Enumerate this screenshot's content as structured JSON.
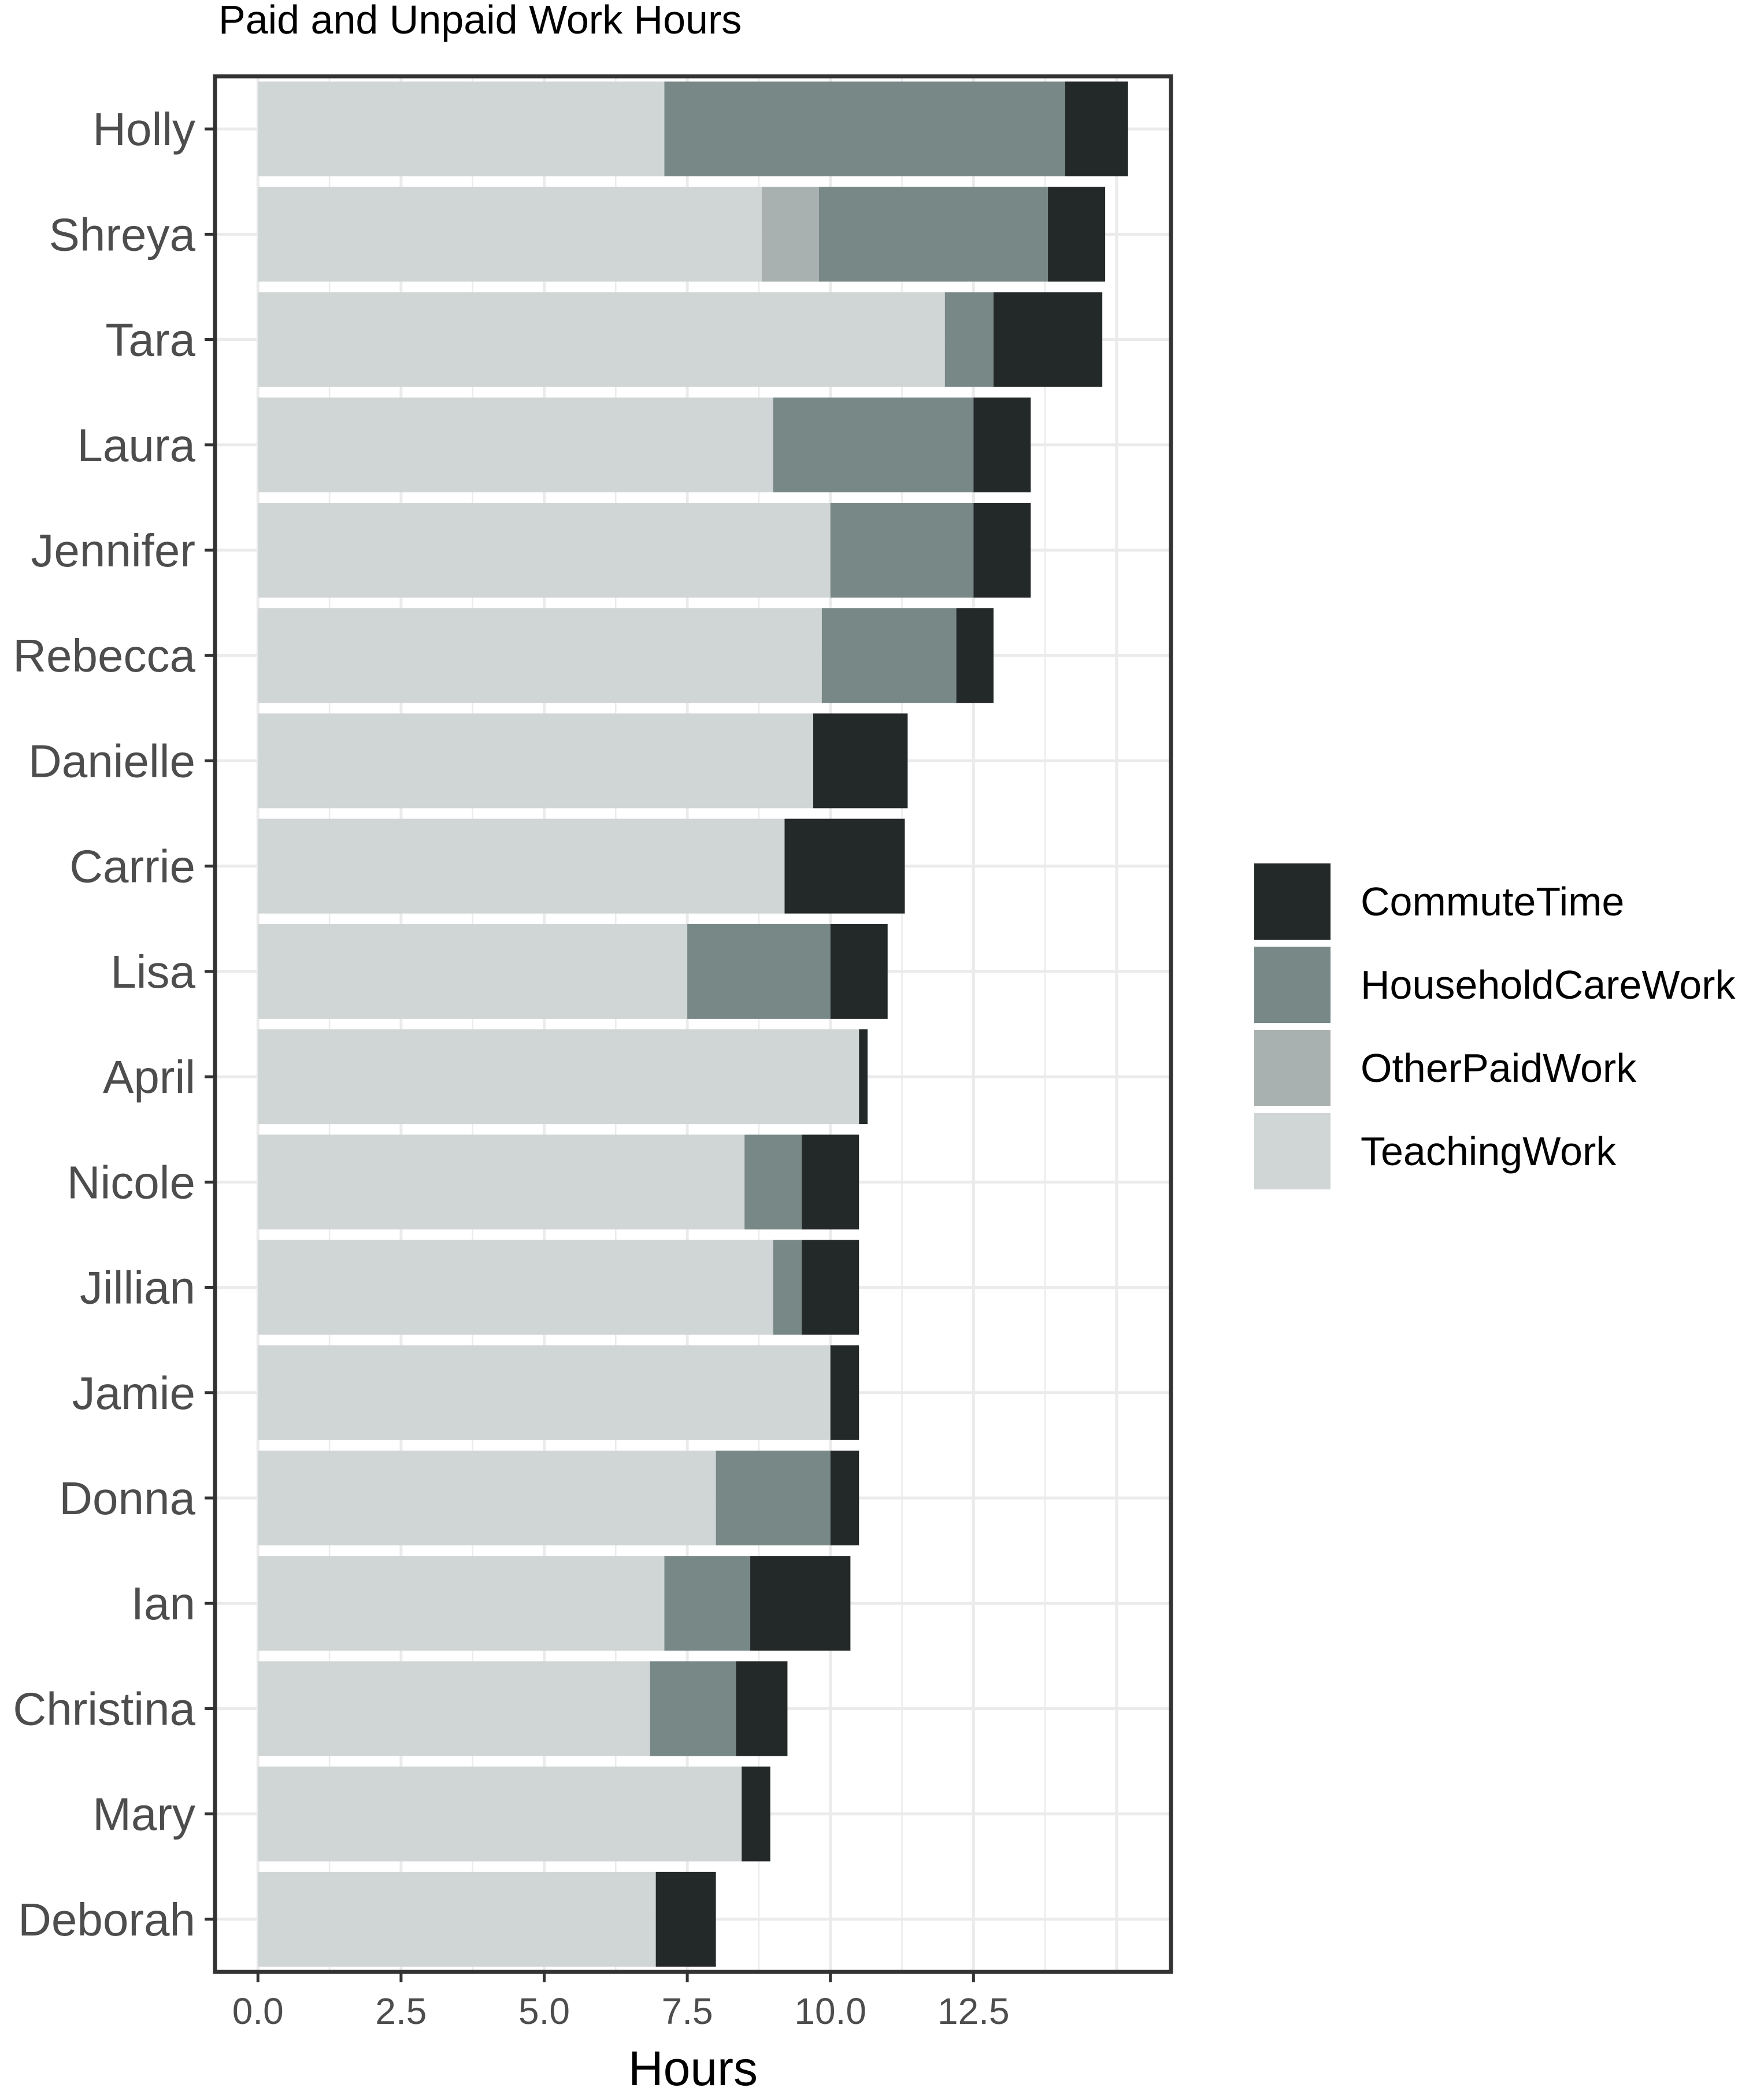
{
  "chart_data": {
    "type": "bar",
    "orientation": "horizontal",
    "stacked": true,
    "title": "Paid and Unpaid Work Hours",
    "xlabel": "Hours",
    "ylabel": "",
    "xlim": [
      -0.75,
      15.95
    ],
    "x_ticks": [
      0,
      2.5,
      5,
      7.5,
      10,
      12.5
    ],
    "x_tick_labels": [
      "0.0",
      "2.5",
      "5.0",
      "7.5",
      "10.0",
      "12.5"
    ],
    "grid": true,
    "legend_position": "right",
    "legend_order": [
      "CommuteTime",
      "HouseholdCareWork",
      "OtherPaidWork",
      "TeachingWork"
    ],
    "categories": [
      "Holly",
      "Shreya",
      "Tara",
      "Laura",
      "Jennifer",
      "Rebecca",
      "Danielle",
      "Carrie",
      "Lisa",
      "April",
      "Nicole",
      "Jillian",
      "Jamie",
      "Donna",
      "Ian",
      "Christina",
      "Mary",
      "Deborah"
    ],
    "series": [
      {
        "name": "TeachingWork",
        "color": "#d0d6d5",
        "values": [
          7.1,
          8.8,
          12.0,
          9.0,
          10.0,
          9.85,
          9.7,
          9.2,
          7.5,
          10.5,
          8.5,
          9.0,
          10.0,
          8.0,
          7.1,
          6.85,
          8.45,
          6.95
        ]
      },
      {
        "name": "OtherPaidWork",
        "color": "#a8b1b0",
        "values": [
          0,
          1.0,
          0,
          0,
          0,
          0,
          0,
          0,
          0,
          0,
          0,
          0,
          0,
          0,
          0,
          0,
          0,
          0
        ]
      },
      {
        "name": "HouseholdCareWork",
        "color": "#788887",
        "values": [
          7.0,
          4.0,
          0.85,
          3.5,
          2.5,
          2.35,
          0,
          0,
          2.5,
          0,
          1.0,
          0.5,
          0,
          2.0,
          1.5,
          1.5,
          0,
          0
        ]
      },
      {
        "name": "CommuteTime",
        "color": "#232828",
        "values": [
          1.1,
          1.0,
          1.9,
          1.0,
          1.0,
          0.65,
          1.65,
          2.1,
          1.0,
          0.15,
          1.0,
          1.0,
          0.5,
          0.5,
          1.75,
          0.9,
          0.5,
          1.05
        ]
      }
    ]
  }
}
